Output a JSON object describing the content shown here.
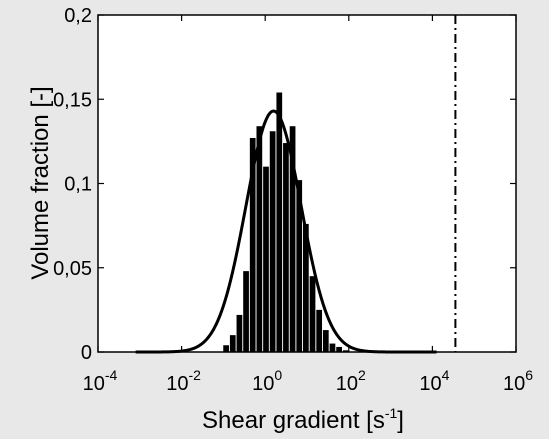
{
  "chart_data": {
    "type": "bar",
    "xlabel_base": "Shear gradient [s",
    "xlabel_sup": "-1",
    "xlabel_end": "]",
    "ylabel": "Volume fraction [-]",
    "x_scale": "log10",
    "xlim": [
      0.0001,
      1000000
    ],
    "ylim": [
      0,
      0.2
    ],
    "x_ticks": [
      {
        "base": "10",
        "exp": "-4",
        "value": 0.0001
      },
      {
        "base": "10",
        "exp": "-2",
        "value": 0.01
      },
      {
        "base": "10",
        "exp": "0",
        "value": 1
      },
      {
        "base": "10",
        "exp": "2",
        "value": 100
      },
      {
        "base": "10",
        "exp": "4",
        "value": 10000
      },
      {
        "base": "10",
        "exp": "6",
        "value": 1000000
      }
    ],
    "y_ticks": [
      {
        "label": "0",
        "value": 0
      },
      {
        "label": "0,05",
        "value": 0.05
      },
      {
        "label": "0,1",
        "value": 0.1
      },
      {
        "label": "0,15",
        "value": 0.15
      },
      {
        "label": "0,2",
        "value": 0.2
      }
    ],
    "grid": false,
    "legend": "none",
    "bar_color": "#000000",
    "bars": {
      "x_log10_centers": [
        -0.935,
        -0.776,
        -0.617,
        -0.458,
        -0.299,
        -0.14,
        0.019,
        0.178,
        0.337,
        0.496,
        0.655,
        0.814,
        0.973,
        1.132,
        1.291,
        1.45,
        1.609,
        1.768,
        1.927
      ],
      "values": [
        0.004,
        0.01,
        0.022,
        0.048,
        0.127,
        0.134,
        0.11,
        0.131,
        0.154,
        0.124,
        0.134,
        0.102,
        0.076,
        0.045,
        0.025,
        0.013,
        0.005,
        0.003,
        0.001
      ]
    },
    "fit_curve": {
      "type": "lognormal",
      "peak_log10_x": 0.2,
      "peak_value": 0.143,
      "sigma_log10": 0.66,
      "x_log10_range": [
        -3.1,
        4.1
      ]
    },
    "vertical_line": {
      "x": 35500,
      "style": "dash-dot"
    }
  }
}
